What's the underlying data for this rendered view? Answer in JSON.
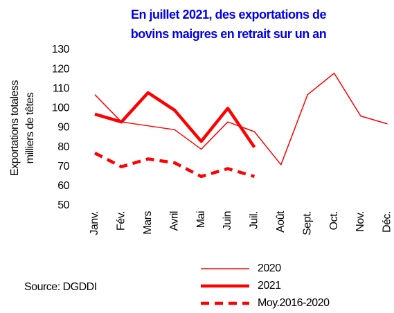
{
  "chart_data": {
    "type": "line",
    "title": [
      "En juillet 2021, des exportations de",
      "bovins maigres en retrait sur un an"
    ],
    "y_label": [
      "Exportations totaless",
      "milliers de têtes"
    ],
    "source": "Source: DGDDI",
    "categories": [
      "Janv.",
      "Fév.",
      "Mars",
      "Avril",
      "Mai",
      "Juin",
      "Juil.",
      "Août",
      "Sept.",
      "Oct.",
      "Nov.",
      "Déc."
    ],
    "series": [
      {
        "name": "2020",
        "color": "#ff0000",
        "width": 1.5,
        "dash": false,
        "values": [
          107,
          93,
          91,
          89,
          79,
          93,
          88,
          71,
          107,
          118,
          96,
          92
        ]
      },
      {
        "name": "2021",
        "color": "#ff0000",
        "width": 4.5,
        "dash": false,
        "values": [
          97,
          93,
          108,
          99,
          83,
          100,
          80,
          null,
          null,
          null,
          null,
          null
        ]
      },
      {
        "name": "Moy.2016-2020",
        "color": "#ff0000",
        "width": 4.5,
        "dash": true,
        "values": [
          77,
          70,
          74,
          72,
          65,
          69,
          65,
          null,
          null,
          null,
          null,
          null
        ]
      }
    ],
    "ylim": [
      50,
      130
    ],
    "yticks": [
      50,
      60,
      70,
      80,
      90,
      100,
      110,
      120,
      130
    ],
    "grid": false
  }
}
